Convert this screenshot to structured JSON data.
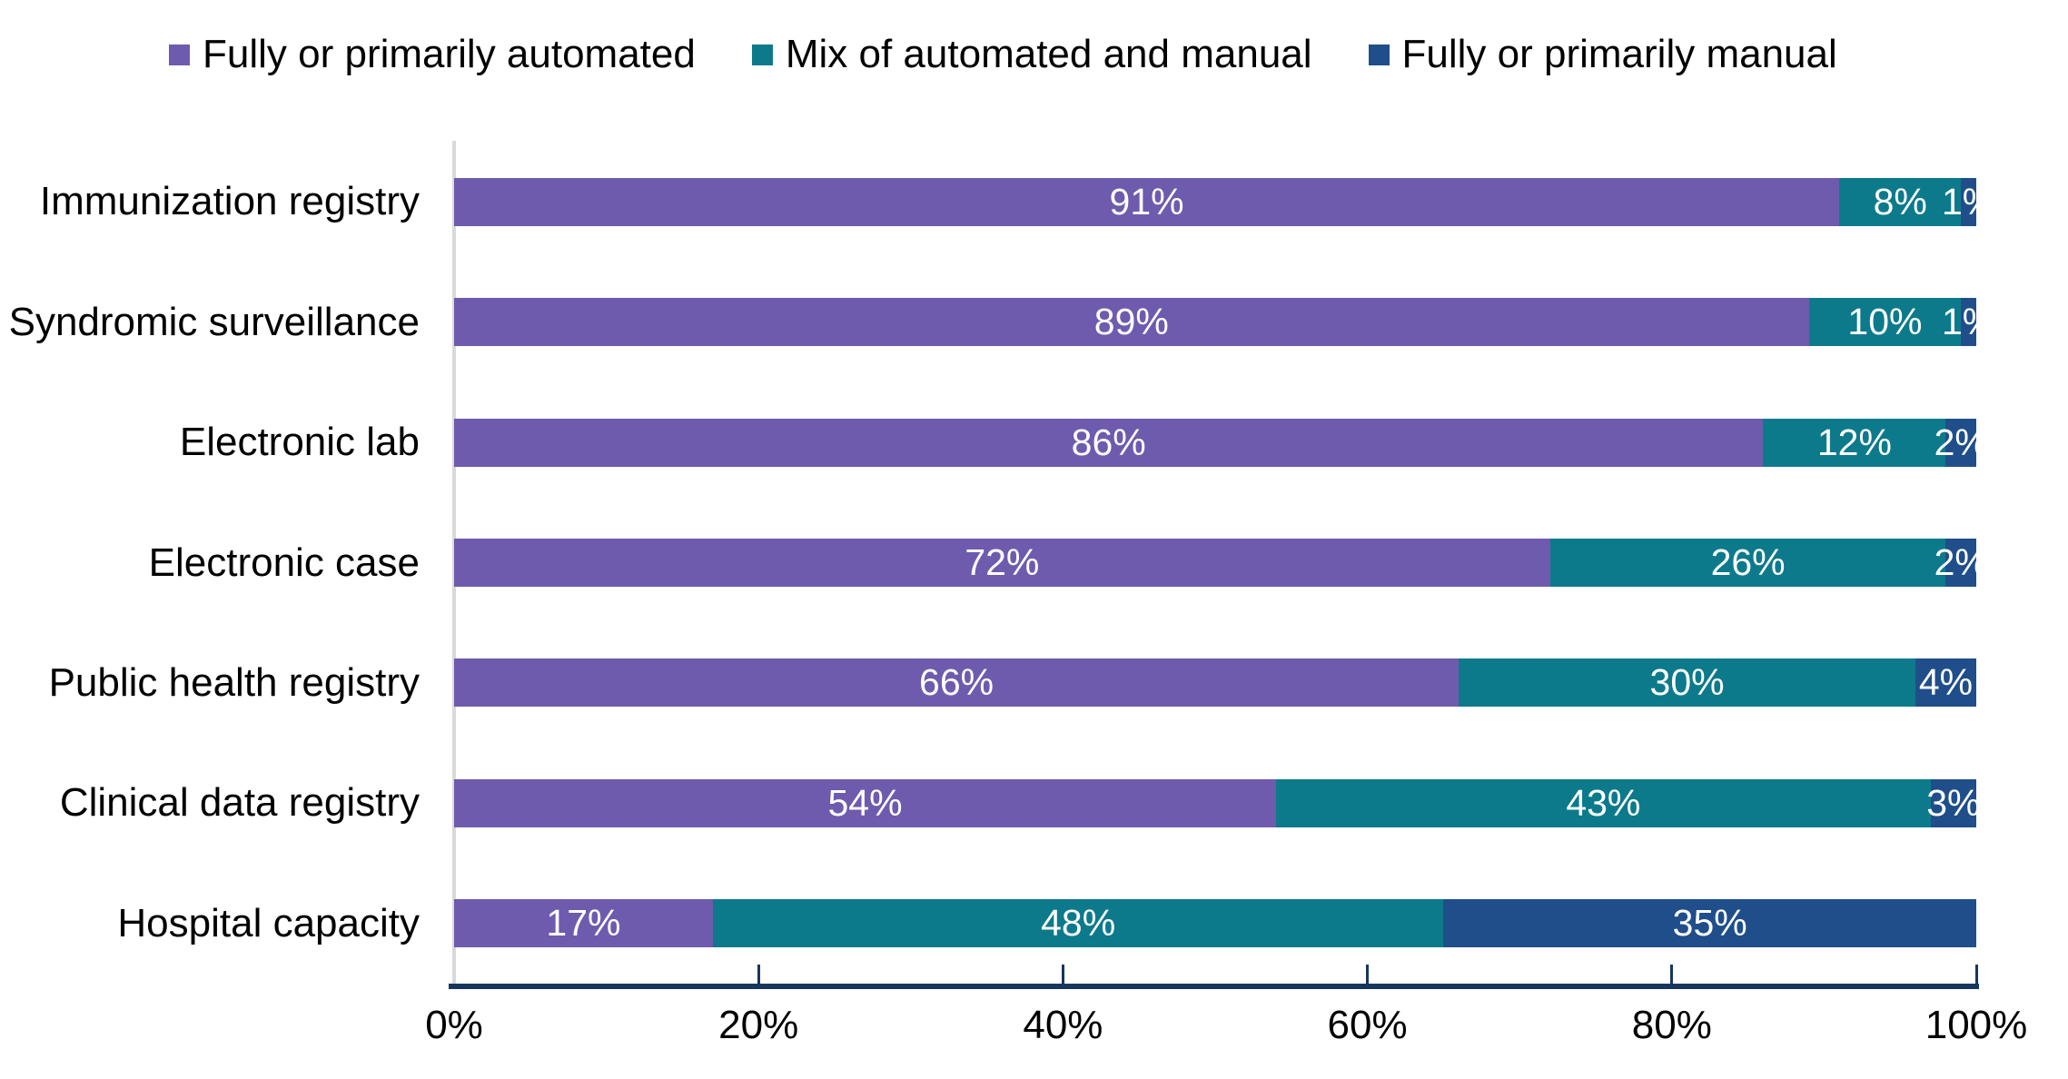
{
  "chart_data": {
    "type": "bar",
    "variant": "horizontal-stacked",
    "title": "",
    "categories": [
      "Immunization registry",
      "Syndromic surveillance",
      "Electronic lab",
      "Electronic case",
      "Public health registry",
      "Clinical data registry",
      "Hospital capacity"
    ],
    "series": [
      {
        "name": "Fully or primarily automated",
        "color": "#6e5bae",
        "values": [
          91,
          89,
          86,
          72,
          66,
          54,
          17
        ]
      },
      {
        "name": "Mix of automated and manual",
        "color": "#0d7a8c",
        "values": [
          8,
          10,
          12,
          26,
          30,
          43,
          48
        ]
      },
      {
        "name": "Fully or primarily manual",
        "color": "#1f4e8a",
        "values": [
          1,
          1,
          2,
          2,
          4,
          3,
          35
        ]
      }
    ],
    "value_suffix": "%",
    "data_label_format": "inside-center-white",
    "xlim": [
      0,
      100
    ],
    "x_ticks": [
      {
        "value": 0,
        "label": "0%"
      },
      {
        "value": 20,
        "label": "20%"
      },
      {
        "value": 40,
        "label": "40%"
      },
      {
        "value": 60,
        "label": "60%"
      },
      {
        "value": 80,
        "label": "80%"
      },
      {
        "value": 100,
        "label": "100%"
      }
    ],
    "legend_position": "top",
    "grid": false,
    "axis_colors": {
      "x_axis_line": "#17365d",
      "y_axis_line": "#d9d9d9",
      "tick_mark": "#17365d",
      "text": "#000000"
    }
  }
}
